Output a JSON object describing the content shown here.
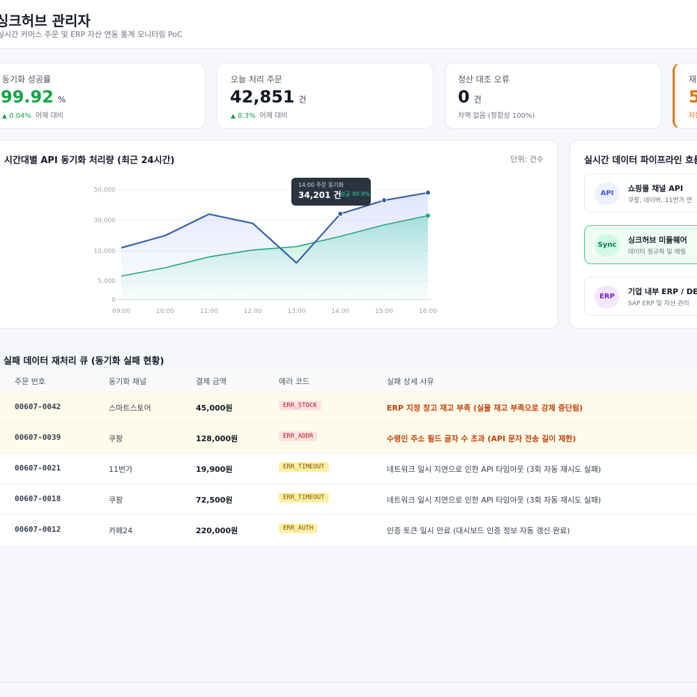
{
  "header": {
    "title": "싱크허브 관리자",
    "subtitle": "실시간 커머스 주문 및 ERP 자산 연동 통계 모니터링 PoC"
  },
  "kpis": [
    {
      "label": "동기화 성공률",
      "value": "99.92",
      "unit": "%",
      "delta": "0.04%",
      "delta_note": "어제 대비",
      "value_color": "#16a34a"
    },
    {
      "label": "오늘 처리 주문",
      "value": "42,851",
      "unit": "건",
      "delta": "8.3%",
      "delta_note": "어제 대비",
      "value_color": "#111827"
    },
    {
      "label": "정산 대조 오류",
      "value": "0",
      "unit": "건",
      "note": "차액 없음 (정합성 100%)",
      "value_color": "#111827"
    },
    {
      "label": "재",
      "value": "5",
      "note": "자동",
      "value_color": "#d97706"
    }
  ],
  "chart": {
    "title": "시간대별 API 동기화 처리량 (최근 24시간)",
    "unit_label": "단위: 건수",
    "tooltip": {
      "time": "14:00 주문 동기화",
      "value": "34,201 건",
      "success": "성공 99.9%"
    }
  },
  "chart_data": {
    "type": "area",
    "title": "시간대별 API 동기화 처리량 (최근 24시간)",
    "x": [
      "09:00",
      "10:00",
      "11:00",
      "12:00",
      "13:00",
      "14:00",
      "15:00",
      "16:00"
    ],
    "y_ticks": [
      0,
      5000,
      10000,
      30000,
      50000
    ],
    "y_tick_labels": [
      "0",
      "5,000",
      "10,000",
      "30,000",
      "50,000"
    ],
    "y_scale": "piecewise (0-5,000-10,000-30,000-50,000 evenly spaced)",
    "series": [
      {
        "values": [
          12000,
          20000,
          34000,
          28000,
          8000,
          34201,
          43000,
          48000
        ],
        "color": "#2f5fa7"
      },
      {
        "values": [
          5800,
          7200,
          9000,
          10600,
          12800,
          19500,
          27000,
          33000
        ],
        "color": "#22a57a"
      }
    ]
  },
  "pipeline": {
    "title": "실시간 데이터 파이프라인 흐름",
    "items": [
      {
        "badge": "API",
        "name": "쇼핑몰 채널 API",
        "desc": "쿠팡, 네이버, 11번가 연",
        "badge_bg": "#eef2ff",
        "badge_color": "#3b5bdb"
      },
      {
        "badge": "Sync",
        "name": "싱크허브 미들웨어",
        "desc": "데이터 정규화 및 매핑",
        "badge_bg": "#d1fae5",
        "badge_color": "#047857"
      },
      {
        "badge": "ERP",
        "name": "기업 내부 ERP / DE",
        "desc": "SAP ERP 및 자산 관리",
        "badge_bg": "#f3e8ff",
        "badge_color": "#7e22ce"
      }
    ]
  },
  "failed_table": {
    "title": "실패 데이터 재처리 큐 (동기화 실패 현황)",
    "columns": [
      "주문 번호",
      "동기화 채널",
      "결제 금액",
      "에러 코드",
      "실패 상세 사유"
    ],
    "rows": [
      {
        "order": "00607-0042",
        "channel": "스마트스토어",
        "amount": "45,000원",
        "code": "ERR_STOCK",
        "reason": "ERP 지정 창고 재고 부족 (실물 재고 부족으로 강제 중단됨)",
        "severity": "high"
      },
      {
        "order": "00607-0039",
        "channel": "쿠팡",
        "amount": "128,000원",
        "code": "ERR_ADDR",
        "reason": "수령인 주소 필드 글자 수 초과 (API 문자 전송 길이 제한)",
        "severity": "high"
      },
      {
        "order": "00607-0021",
        "channel": "11번가",
        "amount": "19,900원",
        "code": "ERR_TIMEOUT",
        "reason": "네트워크 일시 지연으로 인한 API 타임아웃 (3회 자동 재시도 실패)",
        "severity": "low"
      },
      {
        "order": "00607-0018",
        "channel": "쿠팡",
        "amount": "72,500원",
        "code": "ERR_TIMEOUT",
        "reason": "네트워크 일시 지연으로 인한 API 타임아웃 (3회 자동 재시도 실패)",
        "severity": "low"
      },
      {
        "order": "00607-0012",
        "channel": "카페24",
        "amount": "220,000원",
        "code": "ERR_AUTH",
        "reason": "인증 토큰 일시 만료 (대시보드 인증 정보 자동 갱신 완료)",
        "severity": "low"
      }
    ]
  }
}
